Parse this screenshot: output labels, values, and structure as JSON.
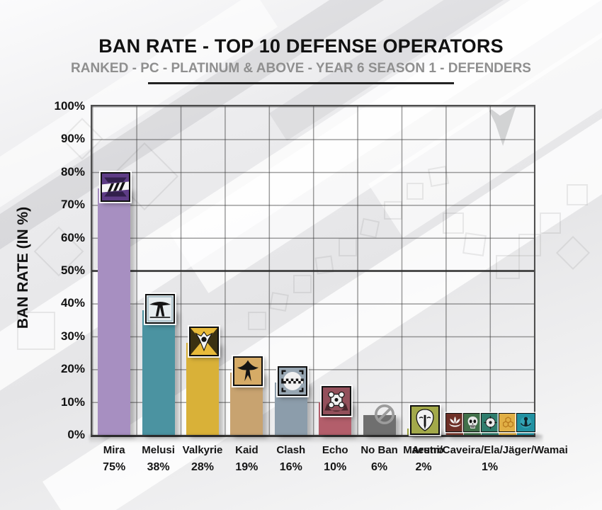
{
  "header": {
    "title": "BAN RATE - TOP 10 DEFENSE OPERATORS",
    "subtitle": "RANKED - PC - PLATINUM & ABOVE - YEAR 6 SEASON 1 - DEFENDERS"
  },
  "y_axis": {
    "label": "BAN RATE (IN %)"
  },
  "chart_data": {
    "type": "bar",
    "title": "BAN RATE - TOP 10 DEFENSE OPERATORS",
    "subtitle": "RANKED - PC - PLATINUM & ABOVE - YEAR 6 SEASON 1 - DEFENDERS",
    "xlabel": "",
    "ylabel": "BAN RATE (IN %)",
    "ylim": [
      0,
      100
    ],
    "grid": true,
    "ytick_labels": [
      "0%",
      "10%",
      "20%",
      "30%",
      "40%",
      "50%",
      "60%",
      "70%",
      "80%",
      "90%",
      "100%"
    ],
    "categories": [
      "Mira",
      "Melusi",
      "Valkyrie",
      "Kaid",
      "Clash",
      "Echo",
      "No Ban",
      "Maestro",
      "Aruni/Caveira/Ela/Jäger/Wamai"
    ],
    "values": [
      75,
      38,
      28,
      19,
      16,
      10,
      6,
      2,
      1
    ],
    "bars": [
      {
        "label": "Mira",
        "value": 75,
        "value_label": "75%",
        "color": "#a78fc1",
        "icon": "mira-icon"
      },
      {
        "label": "Melusi",
        "value": 38,
        "value_label": "38%",
        "color": "#4b93a1",
        "icon": "melusi-icon"
      },
      {
        "label": "Valkyrie",
        "value": 28,
        "value_label": "28%",
        "color": "#d9b138",
        "icon": "valkyrie-icon"
      },
      {
        "label": "Kaid",
        "value": 19,
        "value_label": "19%",
        "color": "#c8a370",
        "icon": "kaid-icon"
      },
      {
        "label": "Clash",
        "value": 16,
        "value_label": "16%",
        "color": "#8c9dab",
        "icon": "clash-icon"
      },
      {
        "label": "Echo",
        "value": 10,
        "value_label": "10%",
        "color": "#b35e6b",
        "icon": "echo-icon"
      },
      {
        "label": "No Ban",
        "value": 6,
        "value_label": "6%",
        "color": "#6f6f6f",
        "icon": "no-ban-icon"
      },
      {
        "label": "Maestro",
        "value": 2,
        "value_label": "2%",
        "color": "#9da33f",
        "icon": "maestro-icon"
      },
      {
        "label": "Aruni/Caveira/Ela/Jäger/Wamai",
        "value": 1,
        "value_label": "1%",
        "segments": [
          {
            "name": "Aruni",
            "color": "#7c3a2e",
            "icon": "aruni-icon"
          },
          {
            "name": "Caveira",
            "color": "#41704a",
            "icon": "caveira-icon"
          },
          {
            "name": "Ela",
            "color": "#2f7d6d",
            "icon": "ela-icon"
          },
          {
            "name": "Jäger",
            "color": "#d9a83c",
            "icon": "jager-icon"
          },
          {
            "name": "Wamai",
            "color": "#2191a2",
            "icon": "wamai-icon"
          }
        ]
      }
    ]
  }
}
